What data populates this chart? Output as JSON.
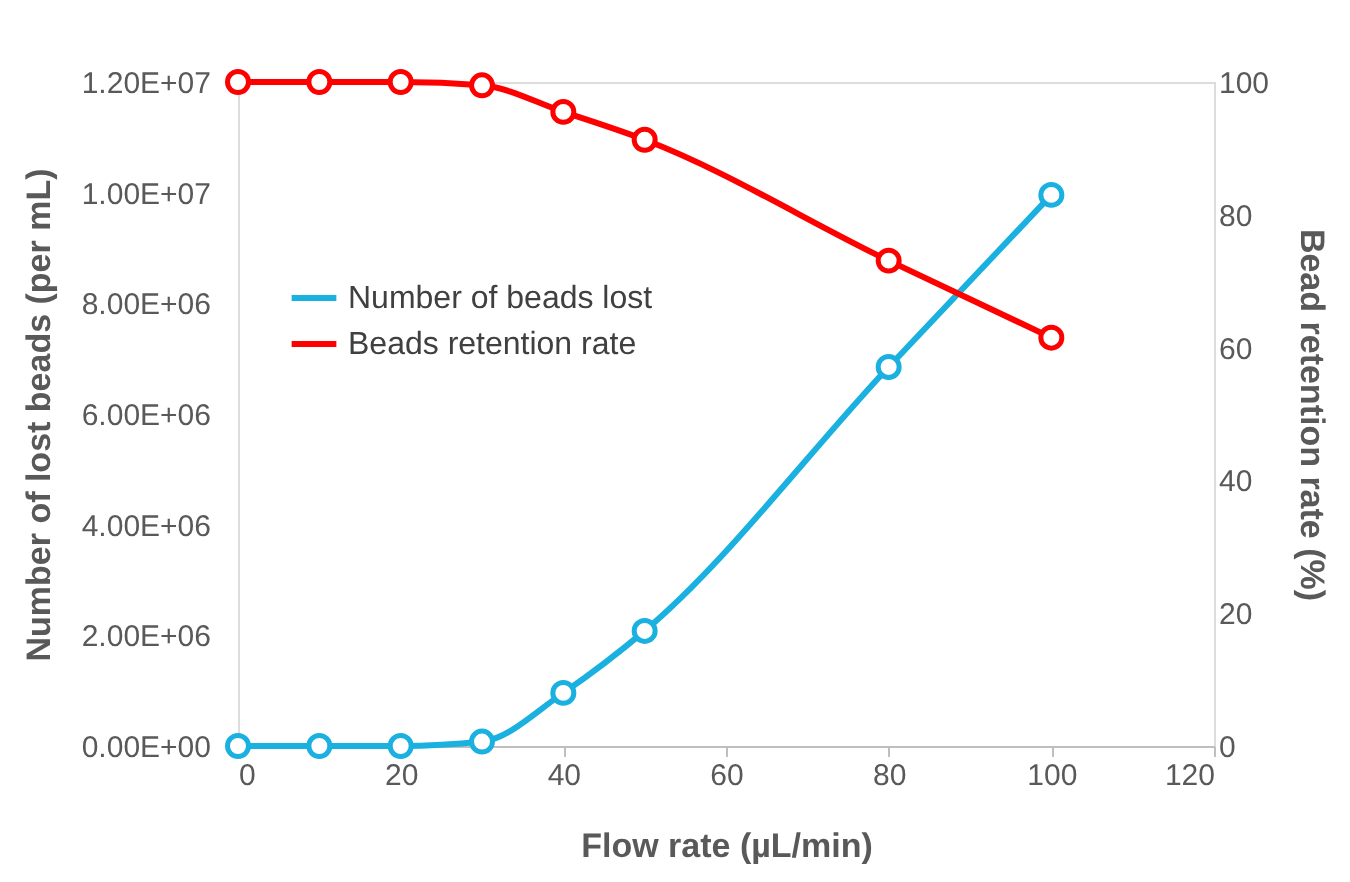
{
  "chart_data": {
    "type": "line",
    "xlabel": "Flow rate (µL/min)",
    "ylabel": "Number of lost beads (per mL)",
    "y2label": "Bead retention rate (%)",
    "series": [
      {
        "name": "Number of beads lost",
        "color": "#1ab0e0",
        "x": [
          0,
          10,
          20,
          30,
          40,
          50,
          80,
          100
        ],
        "values": [
          0,
          0,
          0,
          80000,
          960000,
          2080000,
          6850000,
          9960000
        ]
      },
      {
        "name": "Beads retention rate",
        "color": "#ff0000",
        "axis": "y2",
        "x": [
          0,
          10,
          20,
          30,
          40,
          50,
          80,
          100
        ],
        "values": [
          100,
          100,
          100,
          99.5,
          95.5,
          91.3,
          73.1,
          61.5
        ]
      }
    ],
    "xlim": [
      0,
      120
    ],
    "xticks": [
      0,
      20,
      40,
      60,
      80,
      100,
      120
    ],
    "ylim": [
      0,
      12000000
    ],
    "yticks": [
      {
        "value": 0,
        "label": "0.00E+00"
      },
      {
        "value": 2000000,
        "label": "2.00E+06"
      },
      {
        "value": 4000000,
        "label": "4.00E+06"
      },
      {
        "value": 6000000,
        "label": "6.00E+06"
      },
      {
        "value": 8000000,
        "label": "8.00E+06"
      },
      {
        "value": 10000000,
        "label": "1.00E+07"
      },
      {
        "value": 12000000,
        "label": "1.20E+07"
      }
    ],
    "y2lim": [
      0,
      100
    ],
    "y2ticks": [
      0,
      20,
      40,
      60,
      80,
      100
    ],
    "grid": false,
    "legend": "left",
    "marker": "circle",
    "line_style": "solid"
  }
}
